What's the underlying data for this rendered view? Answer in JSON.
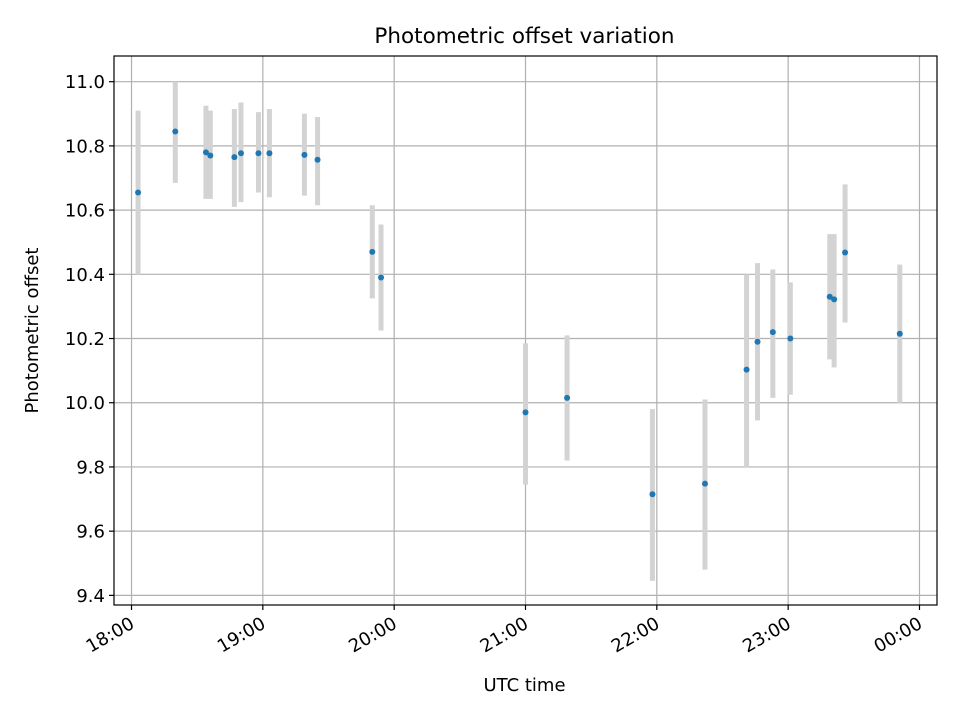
{
  "chart_data": {
    "type": "scatter",
    "title": "Photometric offset variation",
    "xlabel": "UTC time",
    "ylabel": "Photometric offset",
    "xlim": [
      "17:52",
      "00:08"
    ],
    "ylim": [
      9.37,
      11.08
    ],
    "x_ticks": [
      "18:00",
      "19:00",
      "20:00",
      "21:00",
      "22:00",
      "23:00",
      "00:00"
    ],
    "y_ticks": [
      "9.4",
      "9.6",
      "9.8",
      "10.0",
      "10.2",
      "10.4",
      "10.6",
      "10.8",
      "11.0"
    ],
    "y_tick_values": [
      9.4,
      9.6,
      9.8,
      10.0,
      10.2,
      10.4,
      10.6,
      10.8,
      11.0
    ],
    "grid": true,
    "points": [
      {
        "time": "18:03",
        "y": 10.655,
        "lo": 10.4,
        "hi": 10.91
      },
      {
        "time": "18:20",
        "y": 10.845,
        "lo": 10.685,
        "hi": 11.0
      },
      {
        "time": "18:34",
        "y": 10.78,
        "lo": 10.635,
        "hi": 10.925
      },
      {
        "time": "18:36",
        "y": 10.77,
        "lo": 10.635,
        "hi": 10.91
      },
      {
        "time": "18:47",
        "y": 10.765,
        "lo": 10.61,
        "hi": 10.915
      },
      {
        "time": "18:50",
        "y": 10.777,
        "lo": 10.625,
        "hi": 10.935
      },
      {
        "time": "18:58",
        "y": 10.777,
        "lo": 10.655,
        "hi": 10.905
      },
      {
        "time": "19:03",
        "y": 10.777,
        "lo": 10.64,
        "hi": 10.915
      },
      {
        "time": "19:19",
        "y": 10.772,
        "lo": 10.645,
        "hi": 10.9
      },
      {
        "time": "19:25",
        "y": 10.757,
        "lo": 10.615,
        "hi": 10.89
      },
      {
        "time": "19:50",
        "y": 10.47,
        "lo": 10.325,
        "hi": 10.615
      },
      {
        "time": "19:54",
        "y": 10.39,
        "lo": 10.225,
        "hi": 10.555
      },
      {
        "time": "21:00",
        "y": 9.97,
        "lo": 9.745,
        "hi": 10.185
      },
      {
        "time": "21:19",
        "y": 10.015,
        "lo": 9.82,
        "hi": 10.21
      },
      {
        "time": "21:58",
        "y": 9.715,
        "lo": 9.445,
        "hi": 9.98
      },
      {
        "time": "22:22",
        "y": 9.748,
        "lo": 9.48,
        "hi": 10.01
      },
      {
        "time": "22:41",
        "y": 10.103,
        "lo": 9.8,
        "hi": 10.4
      },
      {
        "time": "22:46",
        "y": 10.19,
        "lo": 9.945,
        "hi": 10.435
      },
      {
        "time": "22:53",
        "y": 10.22,
        "lo": 10.015,
        "hi": 10.415
      },
      {
        "time": "23:01",
        "y": 10.2,
        "lo": 10.025,
        "hi": 10.375
      },
      {
        "time": "23:19",
        "y": 10.33,
        "lo": 10.135,
        "hi": 10.525
      },
      {
        "time": "23:21",
        "y": 10.322,
        "lo": 10.11,
        "hi": 10.525
      },
      {
        "time": "23:26",
        "y": 10.468,
        "lo": 10.25,
        "hi": 10.68
      },
      {
        "time": "23:51",
        "y": 10.215,
        "lo": 10.0,
        "hi": 10.43
      }
    ],
    "colors": {
      "point": "#1f77b4",
      "errorbar": "#d3d3d3",
      "grid": "#b0b0b0",
      "axis": "#000000"
    }
  }
}
